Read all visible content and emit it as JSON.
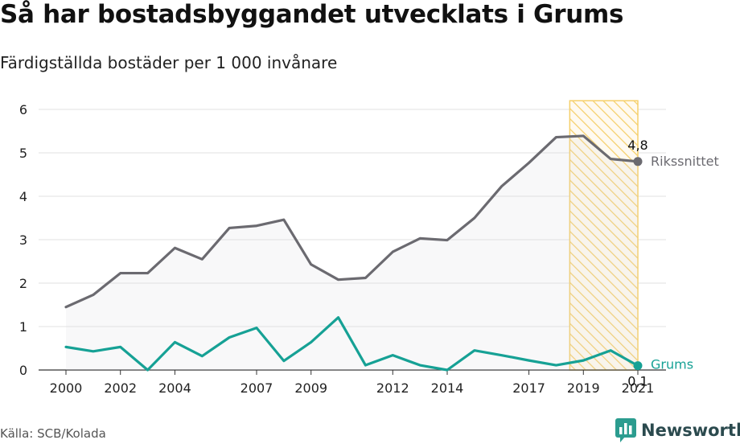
{
  "header": {
    "title": "Så har bostadsbyggandet utvecklats i Grums",
    "subtitle": "Färdigställda bostäder per 1 000 invånare"
  },
  "footer": {
    "source": "Källa: SCB/Kolada",
    "brand": "Newsworthy"
  },
  "colors": {
    "riks": "#6b6a70",
    "grums": "#16a195",
    "highlight": "#f5cf6a",
    "grid": "#e2e2e2"
  },
  "chart_data": {
    "type": "line",
    "x": [
      2000,
      2001,
      2002,
      2003,
      2004,
      2005,
      2006,
      2007,
      2008,
      2009,
      2010,
      2011,
      2012,
      2013,
      2014,
      2015,
      2016,
      2017,
      2018,
      2019,
      2020,
      2021
    ],
    "x_tick_labels": [
      "2000",
      "2002",
      "2004",
      "2007",
      "2009",
      "2012",
      "2014",
      "2017",
      "2019",
      "2021"
    ],
    "y_tick_labels": [
      "0",
      "1",
      "2",
      "3",
      "4",
      "5",
      "6"
    ],
    "ylim": [
      0,
      6
    ],
    "grid": true,
    "highlight_range": [
      2018.5,
      2021
    ],
    "series": [
      {
        "name": "Rikssnittet",
        "end_label": "4,8",
        "values": [
          1.45,
          1.73,
          2.23,
          2.23,
          2.81,
          2.55,
          3.27,
          3.32,
          3.46,
          2.43,
          2.08,
          2.12,
          2.72,
          3.03,
          2.99,
          3.5,
          4.23,
          4.77,
          5.36,
          5.39,
          4.86,
          4.8
        ]
      },
      {
        "name": "Grums",
        "end_label": "0,1",
        "values": [
          0.53,
          0.43,
          0.53,
          0.0,
          0.64,
          0.32,
          0.75,
          0.97,
          0.21,
          0.64,
          1.21,
          0.11,
          0.34,
          0.11,
          0.0,
          0.45,
          0.34,
          0.22,
          0.11,
          0.22,
          0.45,
          0.1
        ]
      }
    ]
  }
}
